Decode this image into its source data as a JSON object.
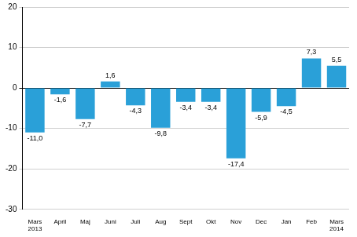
{
  "chart_data": {
    "type": "bar",
    "categories": [
      [
        "Mars",
        "2013"
      ],
      "April",
      "Maj",
      "Juni",
      "Juli",
      "Aug",
      "Sept",
      "Okt",
      "Nov",
      "Dec",
      "Jan",
      "Feb",
      [
        "Mars",
        "2014"
      ]
    ],
    "values": [
      -11.0,
      -1.6,
      -7.7,
      1.6,
      -4.3,
      -9.8,
      -3.4,
      -3.4,
      -17.4,
      -5.9,
      -4.5,
      7.3,
      5.5
    ],
    "value_labels": [
      "-11,0",
      "-1,6",
      "-7,7",
      "1,6",
      "-4,3",
      "-9,8",
      "-3,4",
      "-3,4",
      "-17,4",
      "-5,9",
      "-4,5",
      "7,3",
      "5,5"
    ],
    "data_labels": true,
    "color": "#2aa0d8",
    "ylim": [
      -30,
      20
    ],
    "yticks": [
      -30,
      -20,
      -10,
      0,
      10,
      20
    ],
    "grid": true
  }
}
